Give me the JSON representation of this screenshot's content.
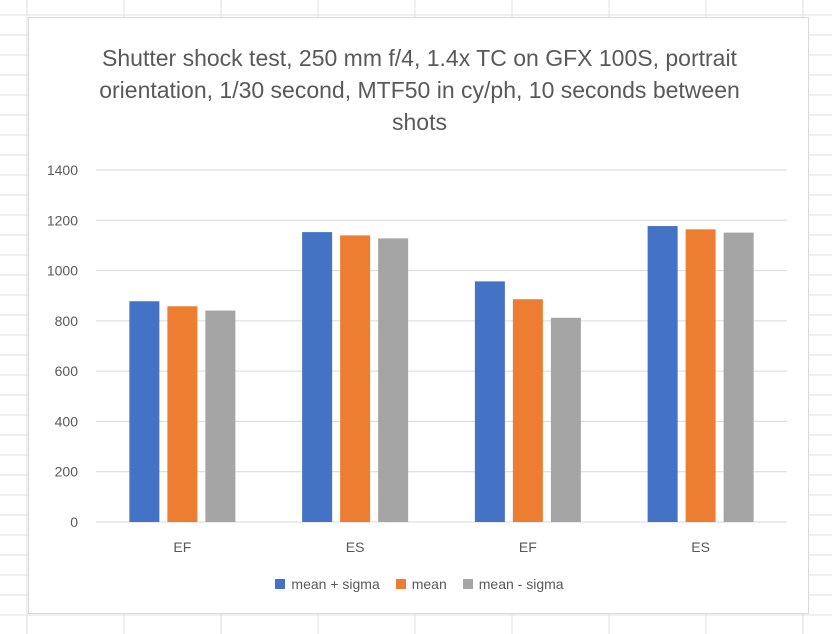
{
  "colors": {
    "mean_plus_sigma": "#4472C4",
    "mean": "#ED7D31",
    "mean_minus_sigma": "#A5A5A5",
    "gridline": "#d9d9d9",
    "text": "#595959"
  },
  "chart_data": {
    "type": "bar",
    "title": "Shutter shock test, 250 mm f/4, 1.4x TC on GFX 100S, portrait orientation, 1/30 second, MTF50 in cy/ph, 10 seconds between shots",
    "categories": [
      "EF",
      "ES",
      "EF",
      "ES"
    ],
    "series": [
      {
        "name": "mean + sigma",
        "color": "#4472C4",
        "values": [
          878,
          1153,
          957,
          1177
        ]
      },
      {
        "name": "mean",
        "color": "#ED7D31",
        "values": [
          858,
          1140,
          886,
          1164
        ]
      },
      {
        "name": "mean - sigma",
        "color": "#A5A5A5",
        "values": [
          841,
          1128,
          812,
          1151
        ]
      }
    ],
    "yticks": [
      "0",
      "200",
      "400",
      "600",
      "800",
      "1000",
      "1200",
      "1400"
    ],
    "ylim": [
      0,
      1400
    ],
    "grid": true,
    "legend_position": "bottom"
  }
}
